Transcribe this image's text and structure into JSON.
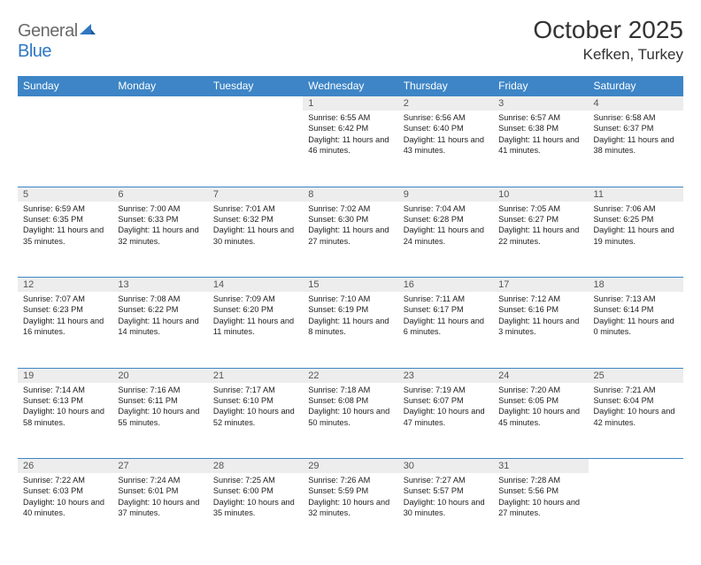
{
  "brand": {
    "general": "General",
    "blue": "Blue"
  },
  "title": "October 2025",
  "location": "Kefken, Turkey",
  "colors": {
    "header_bg": "#3d85c6",
    "header_text": "#ffffff",
    "daynum_bg": "#ededed",
    "rule": "#3d85c6",
    "logo_gray": "#6a6a6a",
    "logo_blue": "#2f78c2"
  },
  "weekdays": [
    "Sunday",
    "Monday",
    "Tuesday",
    "Wednesday",
    "Thursday",
    "Friday",
    "Saturday"
  ],
  "weeks": [
    [
      null,
      null,
      null,
      {
        "n": "1",
        "sr": "6:55 AM",
        "ss": "6:42 PM",
        "dl": "11 hours and 46 minutes."
      },
      {
        "n": "2",
        "sr": "6:56 AM",
        "ss": "6:40 PM",
        "dl": "11 hours and 43 minutes."
      },
      {
        "n": "3",
        "sr": "6:57 AM",
        "ss": "6:38 PM",
        "dl": "11 hours and 41 minutes."
      },
      {
        "n": "4",
        "sr": "6:58 AM",
        "ss": "6:37 PM",
        "dl": "11 hours and 38 minutes."
      }
    ],
    [
      {
        "n": "5",
        "sr": "6:59 AM",
        "ss": "6:35 PM",
        "dl": "11 hours and 35 minutes."
      },
      {
        "n": "6",
        "sr": "7:00 AM",
        "ss": "6:33 PM",
        "dl": "11 hours and 32 minutes."
      },
      {
        "n": "7",
        "sr": "7:01 AM",
        "ss": "6:32 PM",
        "dl": "11 hours and 30 minutes."
      },
      {
        "n": "8",
        "sr": "7:02 AM",
        "ss": "6:30 PM",
        "dl": "11 hours and 27 minutes."
      },
      {
        "n": "9",
        "sr": "7:04 AM",
        "ss": "6:28 PM",
        "dl": "11 hours and 24 minutes."
      },
      {
        "n": "10",
        "sr": "7:05 AM",
        "ss": "6:27 PM",
        "dl": "11 hours and 22 minutes."
      },
      {
        "n": "11",
        "sr": "7:06 AM",
        "ss": "6:25 PM",
        "dl": "11 hours and 19 minutes."
      }
    ],
    [
      {
        "n": "12",
        "sr": "7:07 AM",
        "ss": "6:23 PM",
        "dl": "11 hours and 16 minutes."
      },
      {
        "n": "13",
        "sr": "7:08 AM",
        "ss": "6:22 PM",
        "dl": "11 hours and 14 minutes."
      },
      {
        "n": "14",
        "sr": "7:09 AM",
        "ss": "6:20 PM",
        "dl": "11 hours and 11 minutes."
      },
      {
        "n": "15",
        "sr": "7:10 AM",
        "ss": "6:19 PM",
        "dl": "11 hours and 8 minutes."
      },
      {
        "n": "16",
        "sr": "7:11 AM",
        "ss": "6:17 PM",
        "dl": "11 hours and 6 minutes."
      },
      {
        "n": "17",
        "sr": "7:12 AM",
        "ss": "6:16 PM",
        "dl": "11 hours and 3 minutes."
      },
      {
        "n": "18",
        "sr": "7:13 AM",
        "ss": "6:14 PM",
        "dl": "11 hours and 0 minutes."
      }
    ],
    [
      {
        "n": "19",
        "sr": "7:14 AM",
        "ss": "6:13 PM",
        "dl": "10 hours and 58 minutes."
      },
      {
        "n": "20",
        "sr": "7:16 AM",
        "ss": "6:11 PM",
        "dl": "10 hours and 55 minutes."
      },
      {
        "n": "21",
        "sr": "7:17 AM",
        "ss": "6:10 PM",
        "dl": "10 hours and 52 minutes."
      },
      {
        "n": "22",
        "sr": "7:18 AM",
        "ss": "6:08 PM",
        "dl": "10 hours and 50 minutes."
      },
      {
        "n": "23",
        "sr": "7:19 AM",
        "ss": "6:07 PM",
        "dl": "10 hours and 47 minutes."
      },
      {
        "n": "24",
        "sr": "7:20 AM",
        "ss": "6:05 PM",
        "dl": "10 hours and 45 minutes."
      },
      {
        "n": "25",
        "sr": "7:21 AM",
        "ss": "6:04 PM",
        "dl": "10 hours and 42 minutes."
      }
    ],
    [
      {
        "n": "26",
        "sr": "7:22 AM",
        "ss": "6:03 PM",
        "dl": "10 hours and 40 minutes."
      },
      {
        "n": "27",
        "sr": "7:24 AM",
        "ss": "6:01 PM",
        "dl": "10 hours and 37 minutes."
      },
      {
        "n": "28",
        "sr": "7:25 AM",
        "ss": "6:00 PM",
        "dl": "10 hours and 35 minutes."
      },
      {
        "n": "29",
        "sr": "7:26 AM",
        "ss": "5:59 PM",
        "dl": "10 hours and 32 minutes."
      },
      {
        "n": "30",
        "sr": "7:27 AM",
        "ss": "5:57 PM",
        "dl": "10 hours and 30 minutes."
      },
      {
        "n": "31",
        "sr": "7:28 AM",
        "ss": "5:56 PM",
        "dl": "10 hours and 27 minutes."
      },
      null
    ]
  ],
  "labels": {
    "sunrise": "Sunrise:",
    "sunset": "Sunset:",
    "daylight": "Daylight:"
  }
}
